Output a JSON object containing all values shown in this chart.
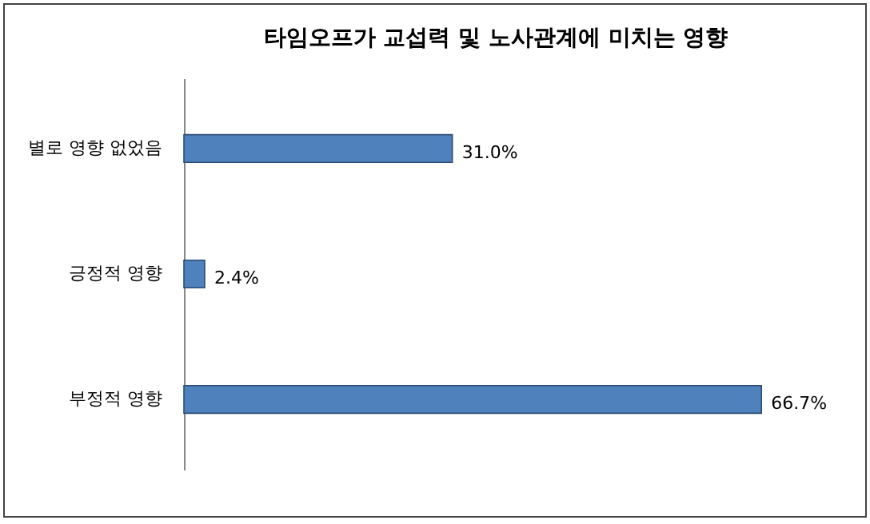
{
  "chart_data": {
    "type": "bar",
    "orientation": "horizontal",
    "title": "타임오프가 교섭력 및 노사관계에 미치는 영향",
    "categories": [
      "별로 영향 없었음",
      "긍정적 영향",
      "부정적 영향"
    ],
    "values": [
      31.0,
      2.4,
      66.7
    ],
    "value_labels": [
      "31.0%",
      "2.4%",
      "66.7%"
    ],
    "color": "#4f81bd"
  }
}
